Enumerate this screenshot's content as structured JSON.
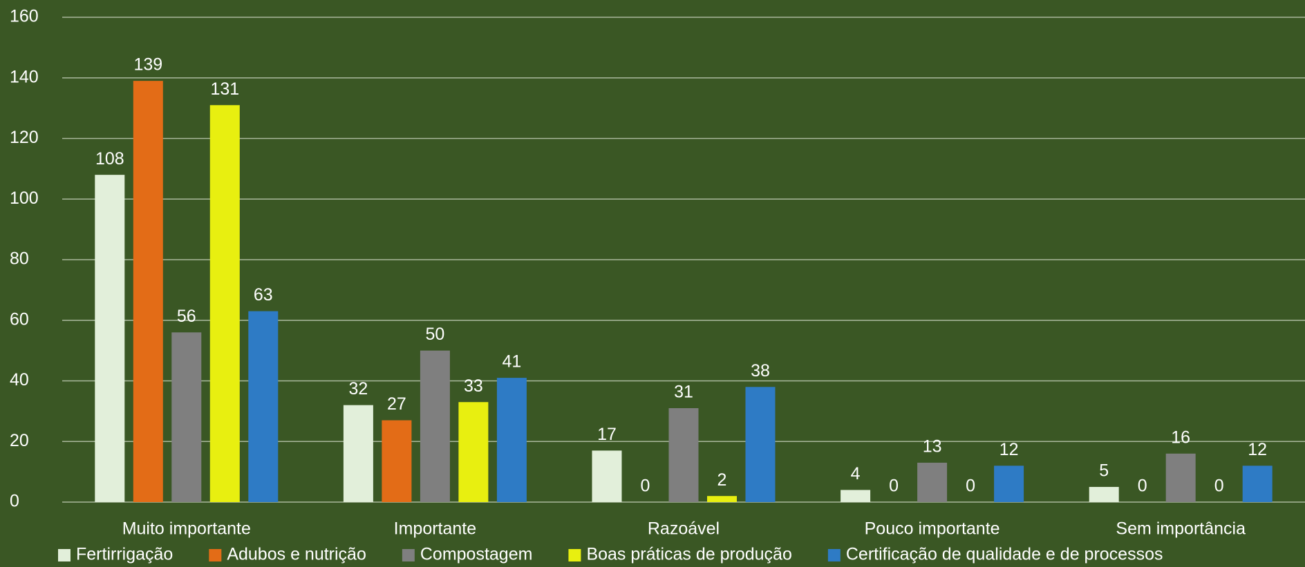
{
  "chart_data": {
    "type": "bar",
    "categories": [
      "Muito importante",
      "Importante",
      "Razoável",
      "Pouco importante",
      "Sem importância"
    ],
    "series": [
      {
        "name": "Fertirrigação",
        "color": "#e2efda",
        "values": [
          108,
          32,
          17,
          4,
          5
        ]
      },
      {
        "name": "Adubos e nutrição",
        "color": "#e36c17",
        "values": [
          139,
          27,
          0,
          0,
          0
        ]
      },
      {
        "name": "Compostagem",
        "color": "#7f7f7f",
        "values": [
          56,
          50,
          31,
          13,
          16
        ]
      },
      {
        "name": "Boas práticas de produção",
        "color": "#e8ef10",
        "values": [
          131,
          33,
          2,
          0,
          0
        ]
      },
      {
        "name": "Certificação de qualidade e de processos",
        "color": "#2e7bc5",
        "values": [
          63,
          41,
          38,
          12,
          12
        ]
      }
    ],
    "ylim": [
      0,
      160
    ],
    "yticks": [
      0,
      20,
      40,
      60,
      80,
      100,
      120,
      140,
      160
    ],
    "grid": true,
    "legend": "bottom"
  }
}
